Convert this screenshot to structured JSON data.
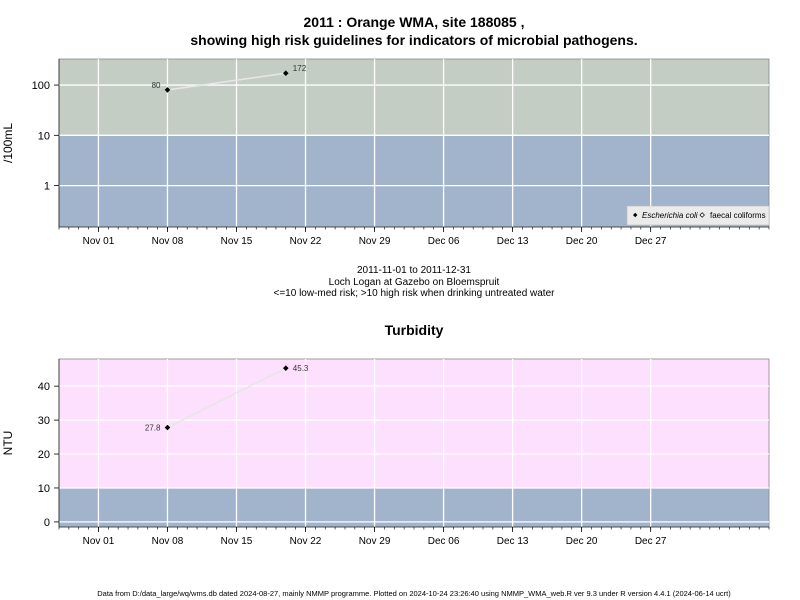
{
  "chart_data": [
    {
      "type": "line",
      "title_line1": "2011 : Orange WMA, site 188085 ,",
      "title_line2": "showing high risk guidelines for indicators of microbial pathogens.",
      "ylabel": "/100mL",
      "yscale": "log",
      "ylim": [
        0.15,
        330
      ],
      "yticks": [
        "1",
        "10",
        "100"
      ],
      "ytick_values": [
        1,
        10,
        100
      ],
      "xlim": [
        "2011-10-28",
        "2012-01-08"
      ],
      "xtick_labels": [
        "Nov 01",
        "Nov 08",
        "Nov 15",
        "Nov 22",
        "Nov 29",
        "Dec 06",
        "Dec 13",
        "Dec 20",
        "Dec 27"
      ],
      "xtick_dates": [
        "2011-11-01",
        "2011-11-08",
        "2011-11-15",
        "2011-11-22",
        "2011-11-29",
        "2011-12-06",
        "2011-12-13",
        "2011-12-20",
        "2011-12-27"
      ],
      "risk_bands": {
        "threshold": 10,
        "low_color": "#a2b4cc",
        "high_color": "#c3cdc3"
      },
      "series": [
        {
          "name": "Escherichia coli",
          "marker": "filled-diamond",
          "x": [
            "2011-11-08",
            "2011-11-20"
          ],
          "y": [
            80,
            172
          ],
          "labels": [
            "80",
            "172"
          ]
        }
      ],
      "legend": {
        "items": [
          "Escherichia coli",
          "faecal coliforms"
        ],
        "position": "bottom-right"
      },
      "grid": true
    },
    {
      "type": "line",
      "title": "Turbidity",
      "ylabel": "NTU",
      "ylim": [
        -1.5,
        48
      ],
      "yticks": [
        "0",
        "10",
        "20",
        "30",
        "40"
      ],
      "ytick_values": [
        0,
        10,
        20,
        30,
        40
      ],
      "xlim": [
        "2011-10-28",
        "2012-01-08"
      ],
      "xtick_labels": [
        "Nov 01",
        "Nov 08",
        "Nov 15",
        "Nov 22",
        "Nov 29",
        "Dec 06",
        "Dec 13",
        "Dec 20",
        "Dec 27"
      ],
      "xtick_dates": [
        "2011-11-01",
        "2011-11-08",
        "2011-11-15",
        "2011-11-22",
        "2011-11-29",
        "2011-12-06",
        "2011-12-13",
        "2011-12-20",
        "2011-12-27"
      ],
      "risk_bands": {
        "threshold": 10,
        "low_color": "#a2b4cc",
        "high_color": "#fde0fd"
      },
      "series": [
        {
          "marker": "filled-diamond",
          "x": [
            "2011-11-08",
            "2011-11-20"
          ],
          "y": [
            27.8,
            45.3
          ],
          "labels": [
            "27.8",
            "45.3"
          ]
        }
      ],
      "grid": true
    }
  ],
  "subtitle": {
    "date_range": "2011-11-01 to 2011-12-31",
    "location": "Loch Logan at Gazebo on Bloemspruit",
    "risk_note": "<=10 low-med risk; >10 high risk when drinking untreated water"
  },
  "footer": "Data from D:/data_large/wq/wms.db dated 2024-08-27, mainly NMMP programme. Plotted on 2024-10-24 23:26:40 using NMMP_WMA_web.R ver 9.3 under R version 4.4.1 (2024-06-14 ucrt)"
}
